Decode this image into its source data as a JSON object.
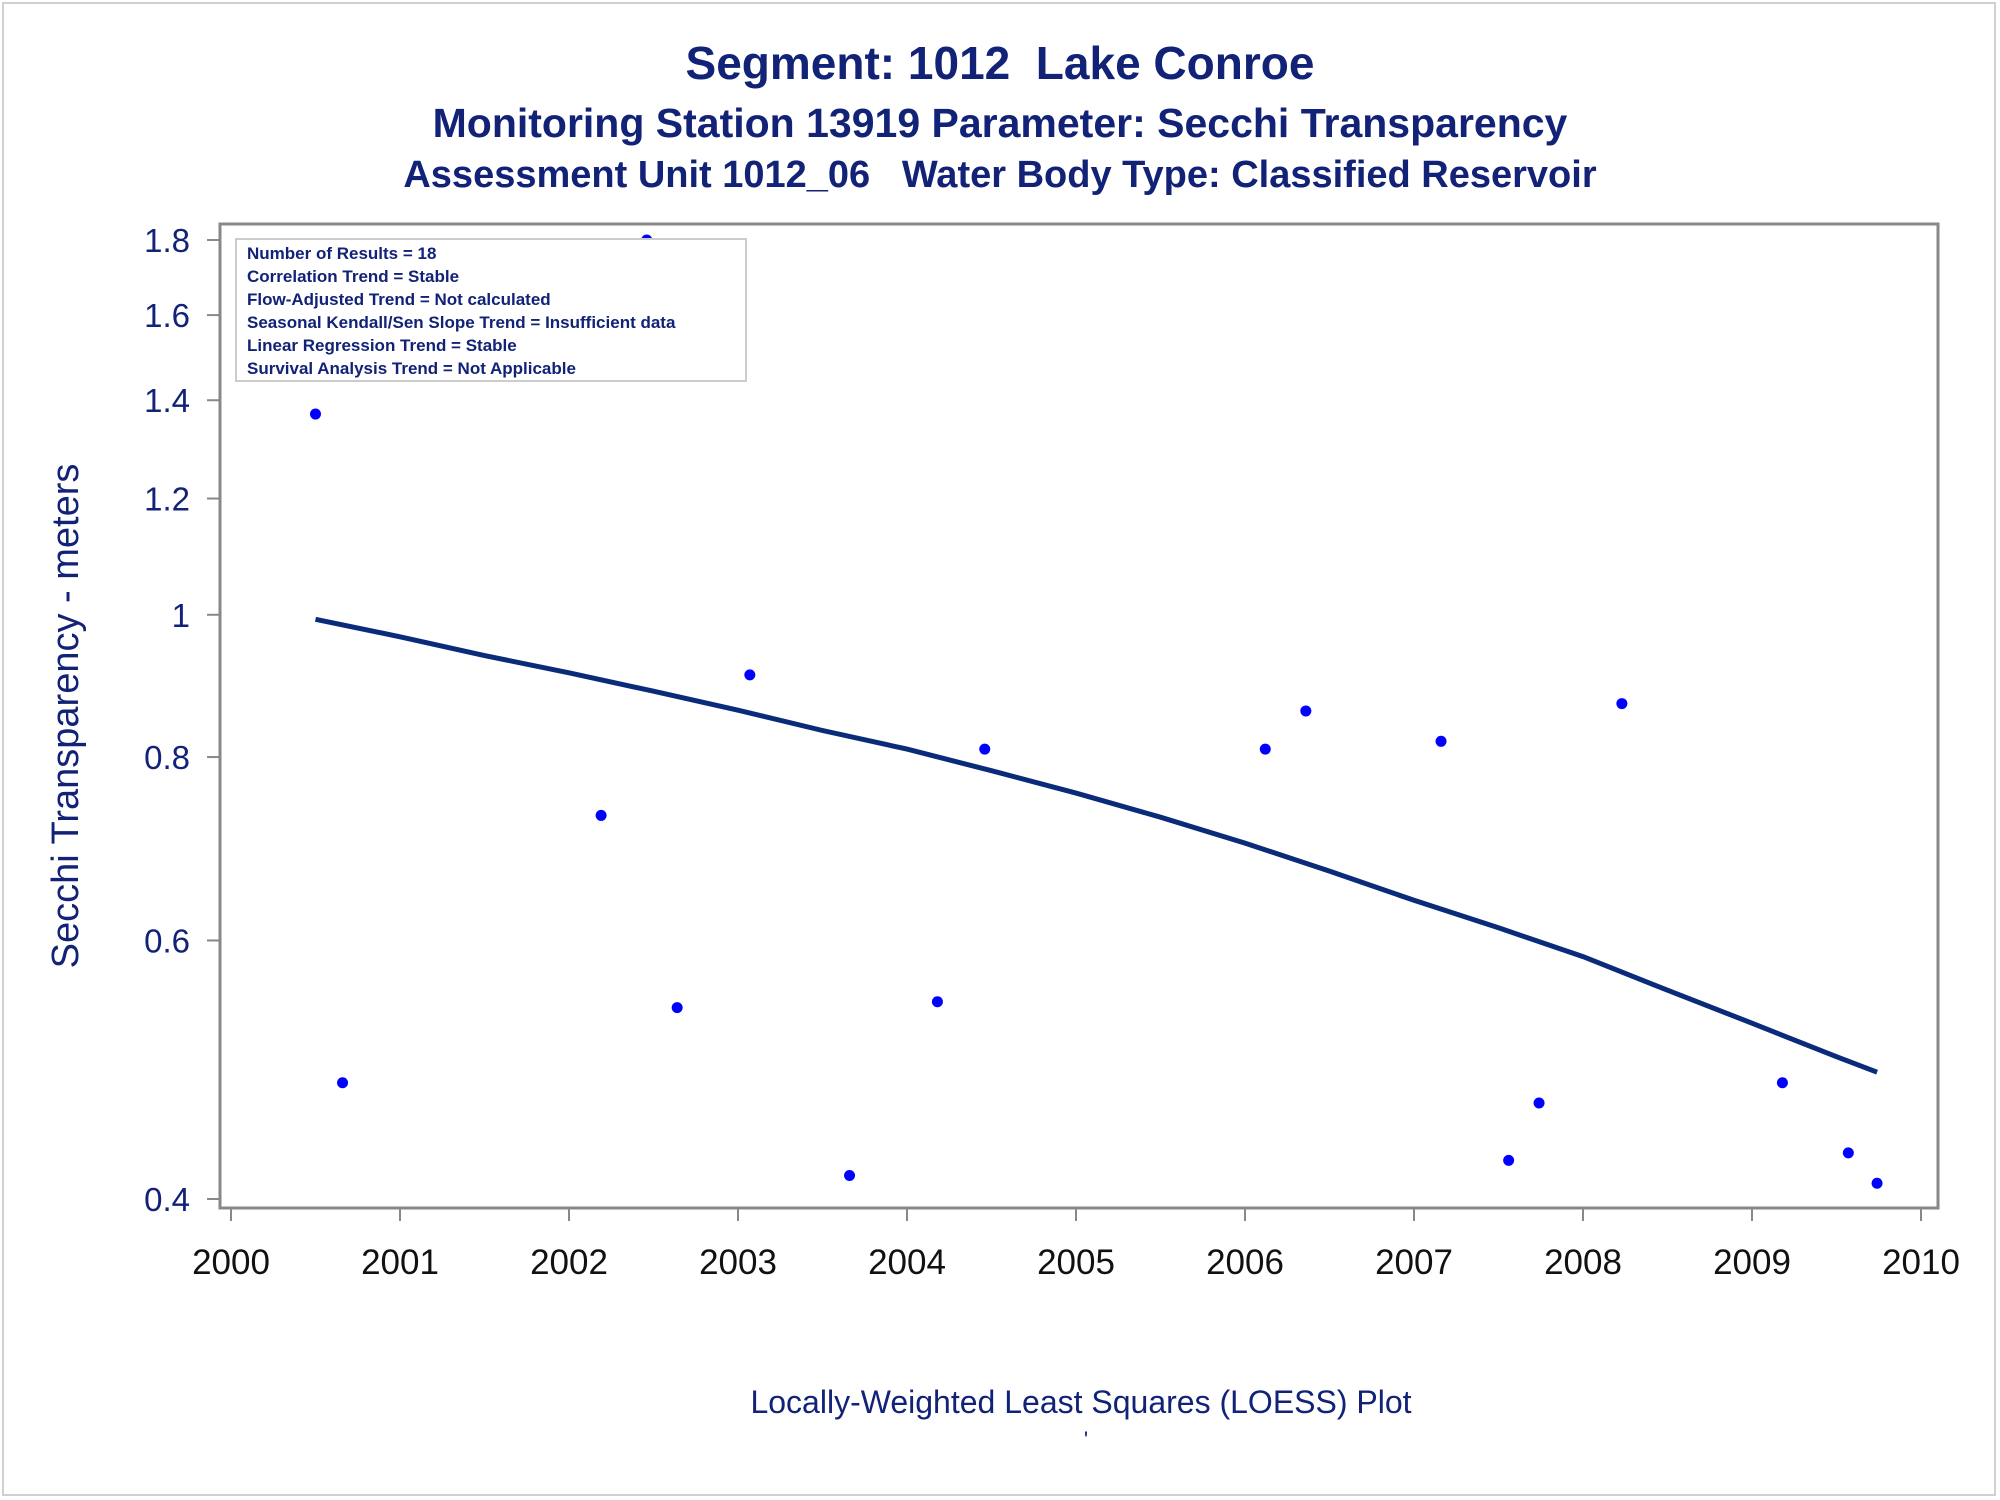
{
  "titles": {
    "line1": "Segment: 1012  Lake Conroe",
    "line2": "Monitoring Station 13919 Parameter: Secchi Transparency",
    "line3": "Assessment Unit 1012_06   Water Body Type: Classified Reservoir"
  },
  "stats_box": [
    "Number of Results = 18",
    "Correlation Trend = Stable",
    "Flow-Adjusted Trend = Not calculated",
    "Seasonal Kendall/Sen Slope Trend = Insufficient data",
    "Linear Regression Trend = Stable",
    "Survival Analysis Trend = Not Applicable"
  ],
  "footer": {
    "caption": "Locally-Weighted Least Squares (LOESS) Plot",
    "mark": "'"
  },
  "colors": {
    "title": "#112277",
    "points": "#0000ff",
    "loess": "#0a2a7a",
    "axis": "#888888"
  },
  "chart_data": {
    "type": "scatter",
    "title": "Segment: 1012  Lake Conroe",
    "xlabel": "Locally-Weighted Least Squares (LOESS) Plot",
    "ylabel": "Secchi Transparency - meters",
    "xlim": [
      2000,
      2010
    ],
    "ylim": [
      0.4,
      1.8
    ],
    "yscale": "log",
    "xticks": [
      "2000",
      "2001",
      "2002",
      "2003",
      "2004",
      "2005",
      "2006",
      "2007",
      "2008",
      "2009",
      "2010"
    ],
    "yticks": [
      "0.4",
      "0.6",
      "0.8",
      "1",
      "1.2",
      "1.4",
      "1.6",
      "1.8"
    ],
    "points": [
      {
        "x": 2000.5,
        "y": 1.37
      },
      {
        "x": 2000.66,
        "y": 0.48
      },
      {
        "x": 2002.19,
        "y": 0.73
      },
      {
        "x": 2002.46,
        "y": 1.8
      },
      {
        "x": 2002.64,
        "y": 0.54
      },
      {
        "x": 2003.07,
        "y": 0.91
      },
      {
        "x": 2003.66,
        "y": 0.415
      },
      {
        "x": 2004.18,
        "y": 0.545
      },
      {
        "x": 2004.46,
        "y": 0.81
      },
      {
        "x": 2006.12,
        "y": 0.81
      },
      {
        "x": 2006.36,
        "y": 0.86
      },
      {
        "x": 2007.16,
        "y": 0.82
      },
      {
        "x": 2007.56,
        "y": 0.425
      },
      {
        "x": 2007.74,
        "y": 0.465
      },
      {
        "x": 2008.23,
        "y": 0.87
      },
      {
        "x": 2009.18,
        "y": 0.48
      },
      {
        "x": 2009.57,
        "y": 0.43
      },
      {
        "x": 2009.74,
        "y": 0.41
      }
    ],
    "loess": [
      {
        "x": 2000.5,
        "y": 0.993
      },
      {
        "x": 2001.0,
        "y": 0.966
      },
      {
        "x": 2001.5,
        "y": 0.938
      },
      {
        "x": 2002.0,
        "y": 0.913
      },
      {
        "x": 2002.5,
        "y": 0.887
      },
      {
        "x": 2003.0,
        "y": 0.861
      },
      {
        "x": 2003.5,
        "y": 0.834
      },
      {
        "x": 2004.0,
        "y": 0.81
      },
      {
        "x": 2004.5,
        "y": 0.783
      },
      {
        "x": 2005.0,
        "y": 0.756
      },
      {
        "x": 2005.5,
        "y": 0.728
      },
      {
        "x": 2006.0,
        "y": 0.699
      },
      {
        "x": 2006.5,
        "y": 0.669
      },
      {
        "x": 2007.0,
        "y": 0.639
      },
      {
        "x": 2007.5,
        "y": 0.612
      },
      {
        "x": 2008.0,
        "y": 0.585
      },
      {
        "x": 2008.5,
        "y": 0.555
      },
      {
        "x": 2009.0,
        "y": 0.527
      },
      {
        "x": 2009.5,
        "y": 0.5
      },
      {
        "x": 2009.74,
        "y": 0.488
      }
    ]
  }
}
